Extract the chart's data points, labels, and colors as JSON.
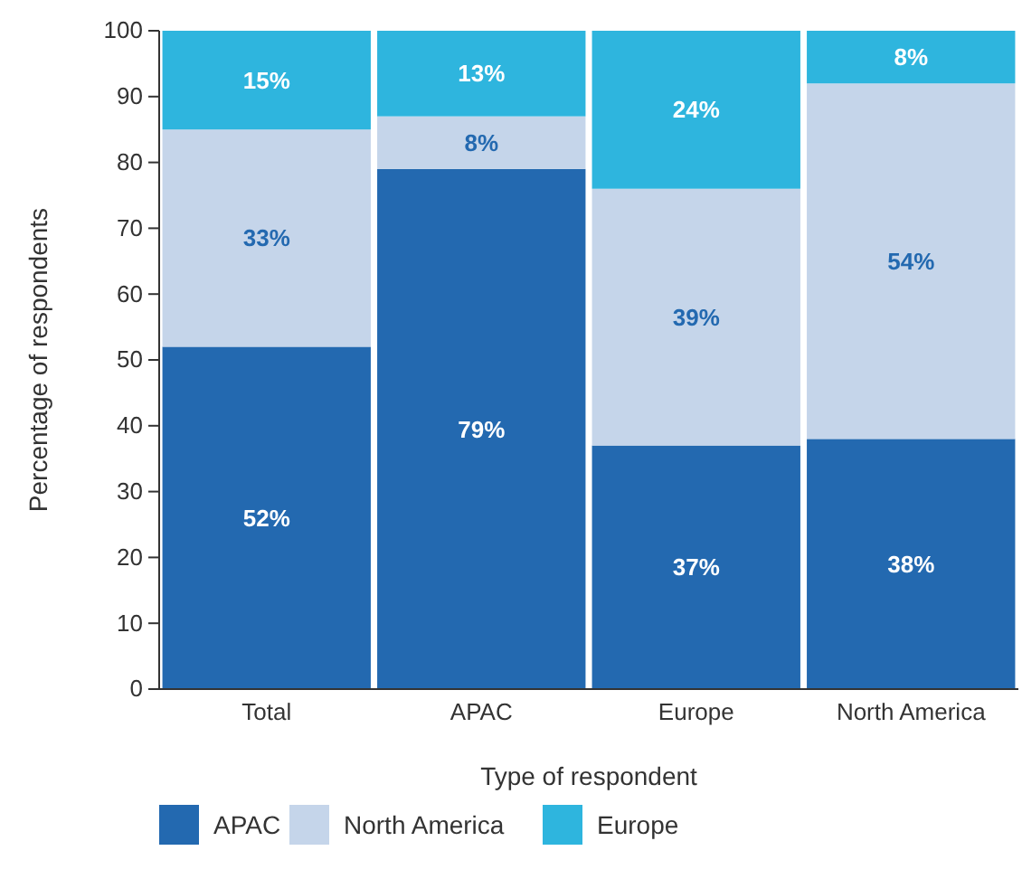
{
  "chart_data": {
    "type": "bar",
    "stacked": true,
    "xlabel": "Type of respondent",
    "ylabel": "Percentage of respondents",
    "categories": [
      "Total",
      "APAC",
      "Europe",
      "North America"
    ],
    "series": [
      {
        "name": "APAC",
        "color": "#2369b0",
        "values": [
          52,
          79,
          37,
          38
        ],
        "value_labels": [
          "52%",
          "79%",
          "37%",
          "38%"
        ]
      },
      {
        "name": "North America",
        "color": "#c5d5ea",
        "values": [
          33,
          8,
          39,
          54
        ],
        "value_labels": [
          "33%",
          "8%",
          "39%",
          "54%"
        ]
      },
      {
        "name": "Europe",
        "color": "#2eb5de",
        "values": [
          15,
          13,
          24,
          8
        ],
        "value_labels": [
          "15%",
          "13%",
          "24%",
          "8%"
        ]
      }
    ],
    "ylim": [
      0,
      100
    ],
    "yticks": [
      0,
      10,
      20,
      30,
      40,
      50,
      60,
      70,
      80,
      90,
      100
    ],
    "grid": false,
    "legend": "bottom"
  }
}
